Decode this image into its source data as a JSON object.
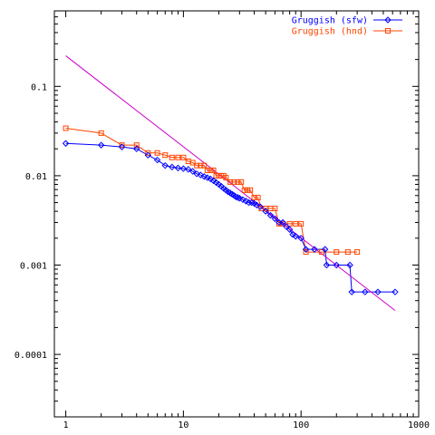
{
  "chart_data": {
    "type": "line",
    "title": "",
    "xlabel": "",
    "ylabel": "",
    "xscale": "log",
    "yscale": "log",
    "xlim": [
      0.8,
      1000
    ],
    "ylim": [
      2e-05,
      0.7
    ],
    "grid": false,
    "legend_position": "top-right",
    "x_ticks": [
      {
        "value": 1,
        "label": "1"
      },
      {
        "value": 10,
        "label": "10"
      },
      {
        "value": 100,
        "label": "100"
      },
      {
        "value": 1000,
        "label": "1000"
      }
    ],
    "y_ticks": [
      {
        "value": 0.1,
        "label": "0.1"
      },
      {
        "value": 0.01,
        "label": "0.01"
      },
      {
        "value": 0.001,
        "label": "0.001"
      },
      {
        "value": 0.0001,
        "label": "0.0001"
      }
    ],
    "series": [
      {
        "name": "Gruggish (sfw)",
        "color": "#0000ff",
        "marker": "diamond",
        "points": [
          [
            1,
            0.023
          ],
          [
            2,
            0.022
          ],
          [
            3,
            0.021
          ],
          [
            4,
            0.02
          ],
          [
            5,
            0.017
          ],
          [
            6,
            0.015
          ],
          [
            7,
            0.013
          ],
          [
            8,
            0.0125
          ],
          [
            9,
            0.0122
          ],
          [
            10,
            0.012
          ],
          [
            11,
            0.0118
          ],
          [
            12,
            0.0112
          ],
          [
            13,
            0.0105
          ],
          [
            14,
            0.0102
          ],
          [
            15,
            0.0098
          ],
          [
            16,
            0.0095
          ],
          [
            17,
            0.0092
          ],
          [
            18,
            0.0088
          ],
          [
            19,
            0.0084
          ],
          [
            20,
            0.008
          ],
          [
            21,
            0.0076
          ],
          [
            22,
            0.0072
          ],
          [
            23,
            0.0069
          ],
          [
            24,
            0.0066
          ],
          [
            25,
            0.0064
          ],
          [
            26,
            0.0062
          ],
          [
            27,
            0.006
          ],
          [
            28,
            0.0058
          ],
          [
            29,
            0.0057
          ],
          [
            30,
            0.0056
          ],
          [
            32,
            0.0054
          ],
          [
            34,
            0.0052
          ],
          [
            36,
            0.005
          ],
          [
            38,
            0.005
          ],
          [
            40,
            0.0049
          ],
          [
            42,
            0.0047
          ],
          [
            45,
            0.0045
          ],
          [
            50,
            0.004
          ],
          [
            55,
            0.0036
          ],
          [
            60,
            0.0033
          ],
          [
            65,
            0.003
          ],
          [
            70,
            0.003
          ],
          [
            75,
            0.0027
          ],
          [
            80,
            0.0025
          ],
          [
            85,
            0.0022
          ],
          [
            90,
            0.0021
          ],
          [
            100,
            0.002
          ],
          [
            110,
            0.0015
          ],
          [
            130,
            0.0015
          ],
          [
            160,
            0.0015
          ],
          [
            165,
            0.001
          ],
          [
            200,
            0.001
          ],
          [
            260,
            0.001
          ],
          [
            270,
            0.0005
          ],
          [
            350,
            0.0005
          ],
          [
            450,
            0.0005
          ],
          [
            630,
            0.0005
          ]
        ]
      },
      {
        "name": "Gruggish (hnd)",
        "color": "#ff4400",
        "marker": "square",
        "points": [
          [
            1,
            0.034
          ],
          [
            2,
            0.03
          ],
          [
            3,
            0.022
          ],
          [
            4,
            0.022
          ],
          [
            5,
            0.018
          ],
          [
            6,
            0.018
          ],
          [
            7,
            0.017
          ],
          [
            8,
            0.016
          ],
          [
            9,
            0.016
          ],
          [
            10,
            0.016
          ],
          [
            11,
            0.0145
          ],
          [
            12,
            0.014
          ],
          [
            13,
            0.013
          ],
          [
            14,
            0.013
          ],
          [
            15,
            0.013
          ],
          [
            16,
            0.0115
          ],
          [
            17,
            0.0115
          ],
          [
            18,
            0.0115
          ],
          [
            19,
            0.01
          ],
          [
            20,
            0.01
          ],
          [
            21,
            0.01
          ],
          [
            22,
            0.01
          ],
          [
            23,
            0.0095
          ],
          [
            25,
            0.0085
          ],
          [
            27,
            0.0085
          ],
          [
            29,
            0.0085
          ],
          [
            31,
            0.0085
          ],
          [
            33,
            0.0069
          ],
          [
            35,
            0.0069
          ],
          [
            37,
            0.0069
          ],
          [
            40,
            0.0057
          ],
          [
            43,
            0.0057
          ],
          [
            46,
            0.0043
          ],
          [
            50,
            0.0043
          ],
          [
            55,
            0.0043
          ],
          [
            60,
            0.0043
          ],
          [
            65,
            0.0029
          ],
          [
            70,
            0.0029
          ],
          [
            80,
            0.0029
          ],
          [
            90,
            0.0029
          ],
          [
            100,
            0.0029
          ],
          [
            110,
            0.0014
          ],
          [
            150,
            0.0014
          ],
          [
            200,
            0.0014
          ],
          [
            250,
            0.0014
          ],
          [
            300,
            0.0014
          ]
        ]
      },
      {
        "name": "",
        "color": "#cc00cc",
        "marker": "none",
        "points": [
          [
            1,
            0.22
          ],
          [
            630,
            0.00031
          ]
        ]
      }
    ]
  }
}
